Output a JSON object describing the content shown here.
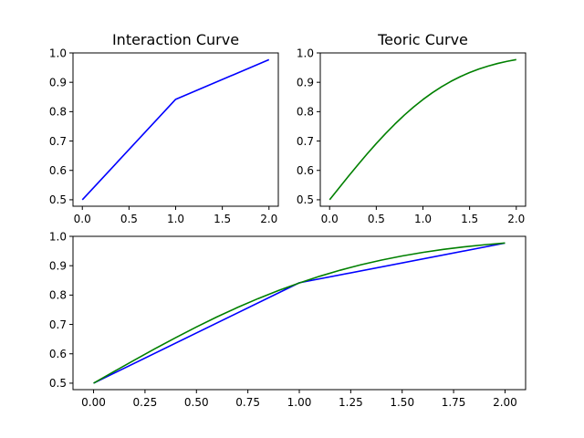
{
  "chart_data": [
    {
      "type": "line",
      "title": "Interaction Curve",
      "xlim": [
        -0.1,
        2.1
      ],
      "ylim": [
        0.478,
        1.0
      ],
      "xticks": [
        0,
        0.5,
        1,
        1.5,
        2
      ],
      "xtick_labels": [
        "0.0",
        "0.5",
        "1.0",
        "1.5",
        "2.0"
      ],
      "yticks": [
        0.5,
        0.6,
        0.7,
        0.8,
        0.9,
        1.0
      ],
      "ytick_labels": [
        "0.5",
        "0.6",
        "0.7",
        "0.8",
        "0.9",
        "1.0"
      ],
      "series": [
        {
          "color": "#0000ff",
          "x": [
            0,
            1,
            2
          ],
          "y": [
            0.5,
            0.842,
            0.977
          ]
        }
      ]
    },
    {
      "type": "line",
      "title": "Teoric Curve",
      "xlim": [
        -0.1,
        2.1
      ],
      "ylim": [
        0.478,
        1.0
      ],
      "xticks": [
        0,
        0.5,
        1,
        1.5,
        2
      ],
      "xtick_labels": [
        "0.0",
        "0.5",
        "1.0",
        "1.5",
        "2.0"
      ],
      "yticks": [
        0.5,
        0.6,
        0.7,
        0.8,
        0.9,
        1.0
      ],
      "ytick_labels": [
        "0.5",
        "0.6",
        "0.7",
        "0.8",
        "0.9",
        "1.0"
      ],
      "series": [
        {
          "color": "#008000",
          "x": [
            0,
            0.1,
            0.2,
            0.3,
            0.4,
            0.5,
            0.6,
            0.7,
            0.8,
            0.9,
            1.0,
            1.1,
            1.2,
            1.3,
            1.4,
            1.5,
            1.6,
            1.7,
            1.8,
            1.9,
            2.0
          ],
          "y": [
            0.5,
            0.5399,
            0.5793,
            0.6179,
            0.6554,
            0.6915,
            0.7257,
            0.758,
            0.7881,
            0.8159,
            0.8413,
            0.8643,
            0.8849,
            0.9032,
            0.9192,
            0.9332,
            0.9452,
            0.9554,
            0.9641,
            0.9713,
            0.9772
          ]
        }
      ]
    },
    {
      "type": "line",
      "title": "",
      "xlim": [
        -0.1,
        2.1
      ],
      "ylim": [
        0.478,
        1.0
      ],
      "xticks": [
        0,
        0.25,
        0.5,
        0.75,
        1,
        1.25,
        1.5,
        1.75,
        2
      ],
      "xtick_labels": [
        "0.00",
        "0.25",
        "0.50",
        "0.75",
        "1.00",
        "1.25",
        "1.50",
        "1.75",
        "2.00"
      ],
      "yticks": [
        0.5,
        0.6,
        0.7,
        0.8,
        0.9,
        1.0
      ],
      "ytick_labels": [
        "0.5",
        "0.6",
        "0.7",
        "0.8",
        "0.9",
        "1.0"
      ],
      "series": [
        {
          "color": "#0000ff",
          "x": [
            0,
            1,
            2
          ],
          "y": [
            0.5,
            0.842,
            0.977
          ]
        },
        {
          "color": "#008000",
          "x": [
            0,
            0.1,
            0.2,
            0.3,
            0.4,
            0.5,
            0.6,
            0.7,
            0.8,
            0.9,
            1.0,
            1.1,
            1.2,
            1.3,
            1.4,
            1.5,
            1.6,
            1.7,
            1.8,
            1.9,
            2.0
          ],
          "y": [
            0.5,
            0.5399,
            0.5793,
            0.6179,
            0.6554,
            0.6915,
            0.7257,
            0.758,
            0.7881,
            0.8159,
            0.8413,
            0.8643,
            0.8849,
            0.9032,
            0.9192,
            0.9332,
            0.9452,
            0.9554,
            0.9641,
            0.9713,
            0.9772
          ]
        }
      ]
    }
  ]
}
